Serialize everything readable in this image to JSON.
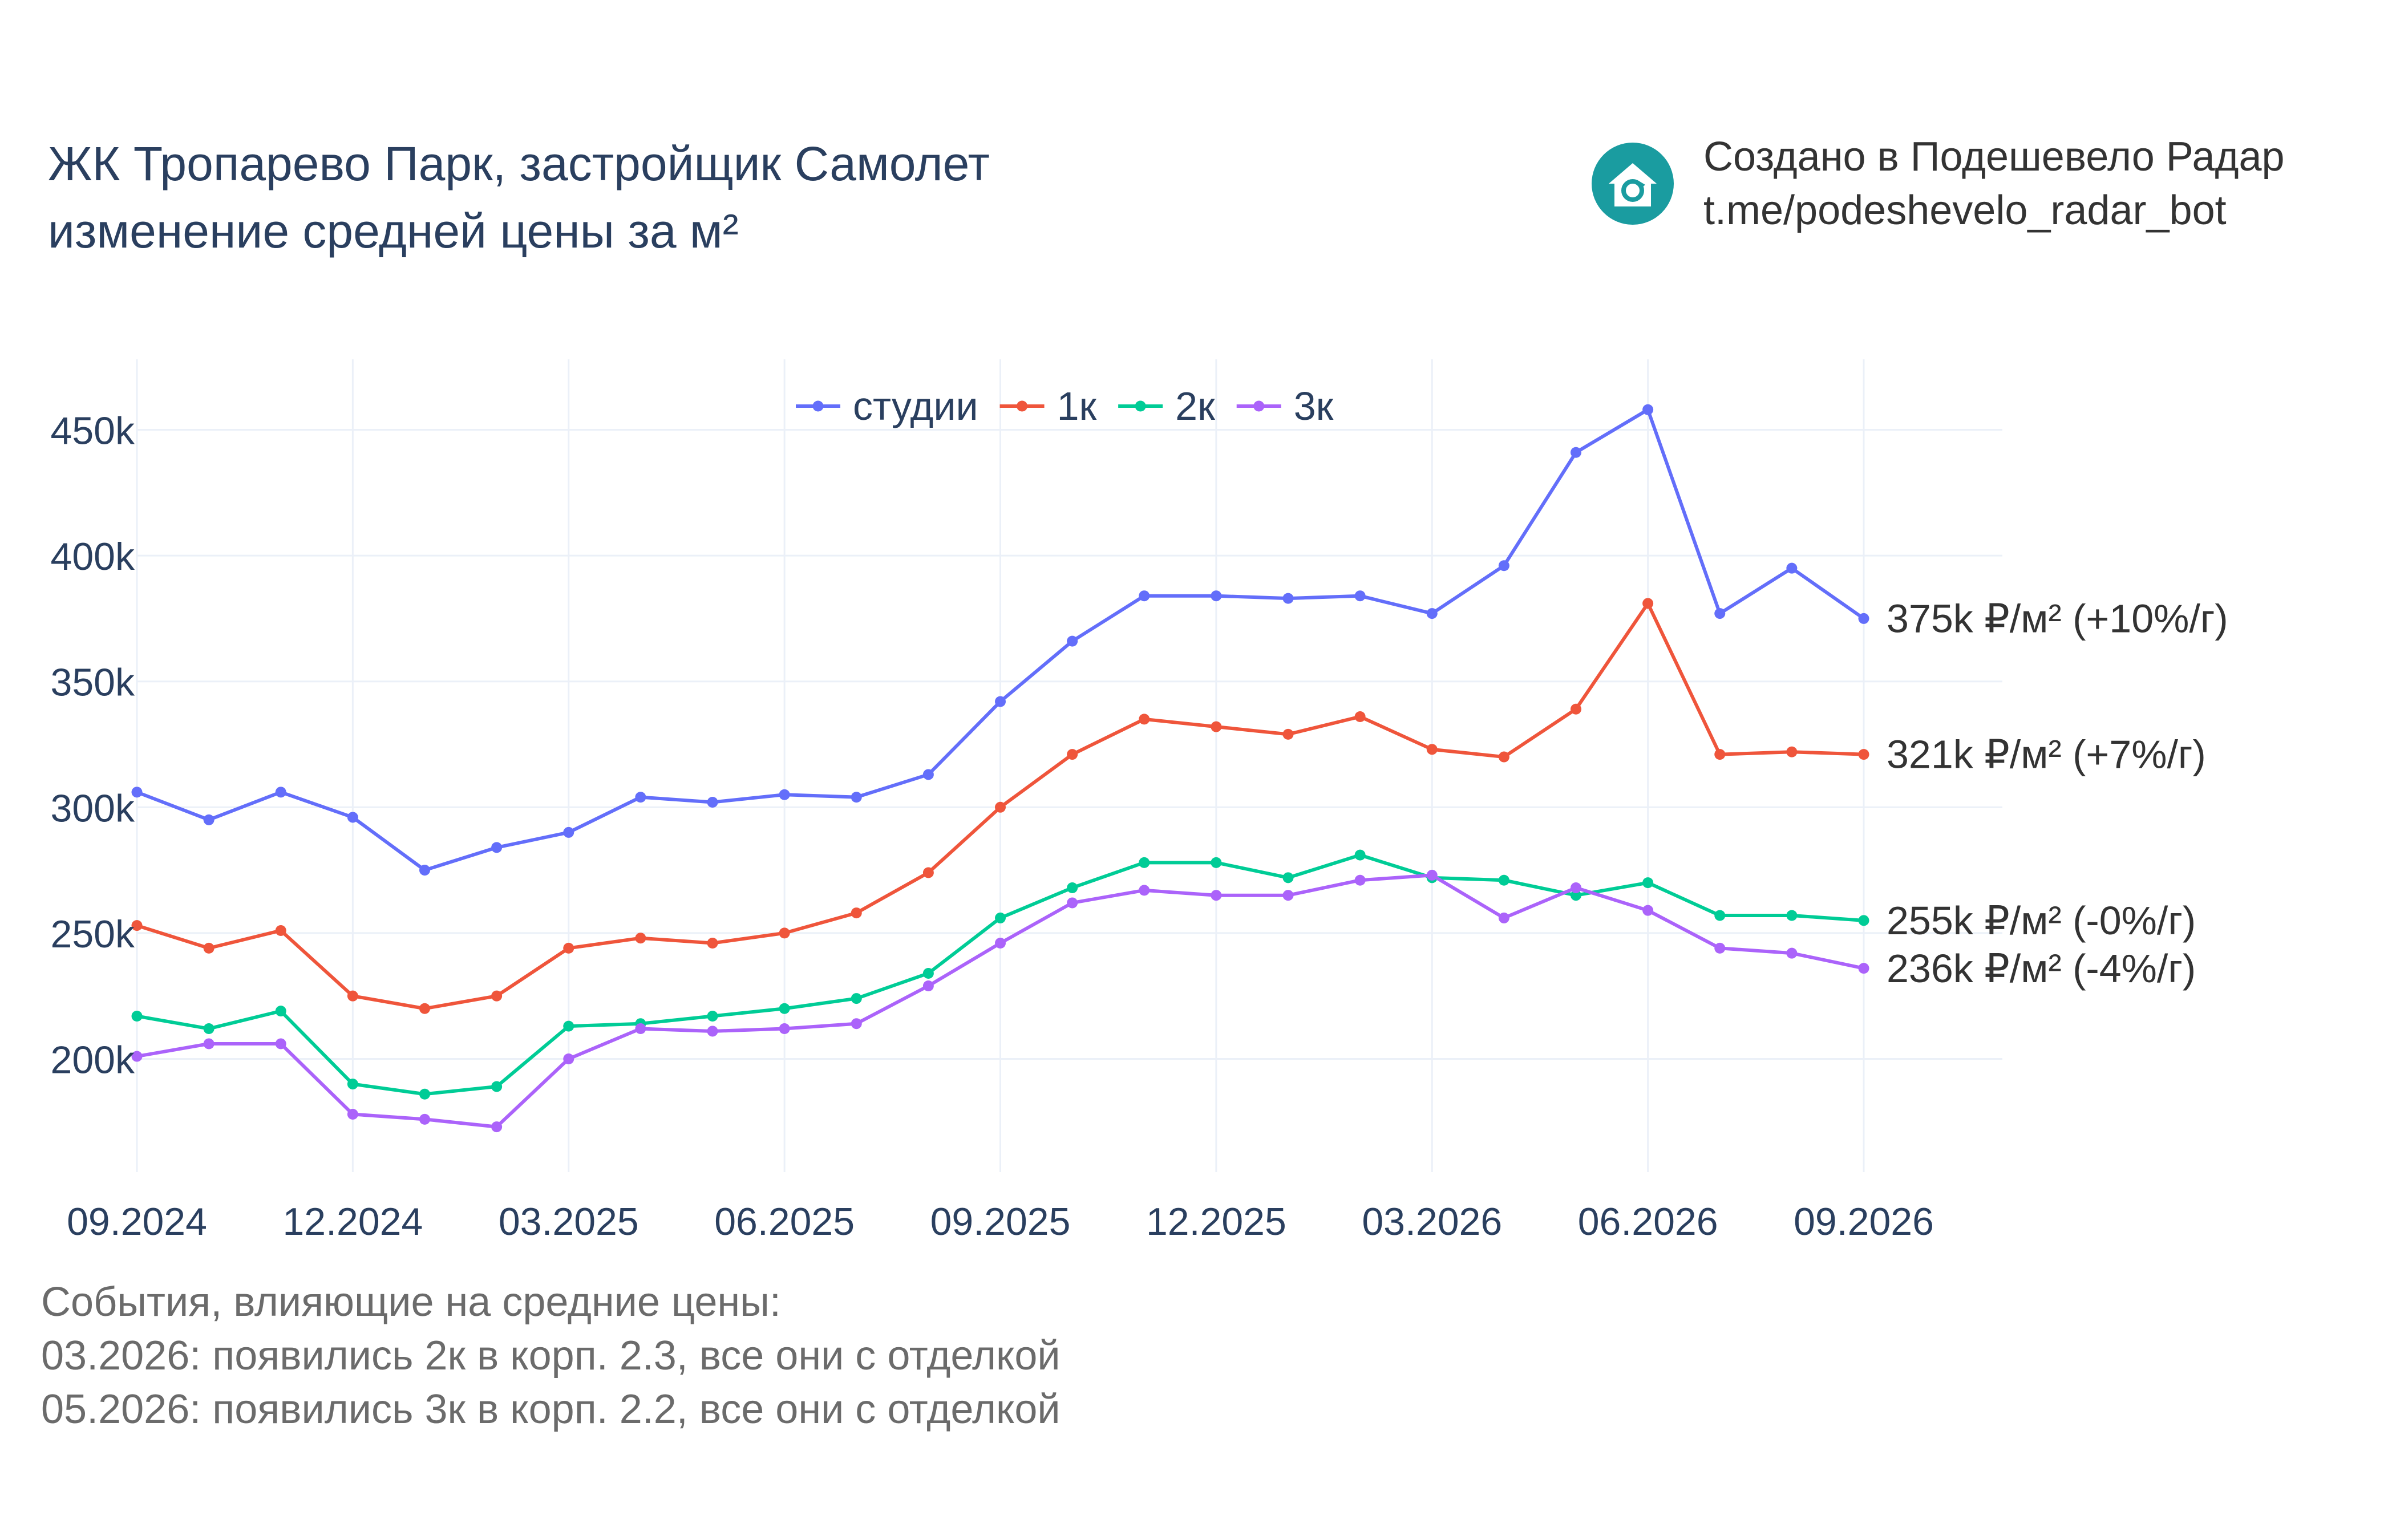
{
  "title": {
    "line1": "ЖК Тропарево Парк, застройщик Самолет",
    "line2": "изменение средней цены за м²"
  },
  "brand": {
    "line1": "Создано в Подешевело Радар",
    "line2": "t.me/podeshevelo_radar_bot",
    "logo_icon": "house-refresh-icon",
    "logo_color": "#1a9ca0"
  },
  "events": {
    "heading": "События, влияющие на средние цены:",
    "items": [
      "03.2026: появились 2к в корп. 2.3, все они с отделкой",
      "05.2026: появились 3к в корп. 2.2, все они с отделкой"
    ]
  },
  "chart_data": {
    "type": "line",
    "x": [
      "09.2024",
      "10.2024",
      "11.2024",
      "12.2024",
      "01.2025",
      "02.2025",
      "03.2025",
      "04.2025",
      "05.2025",
      "06.2025",
      "07.2025",
      "08.2025",
      "09.2025",
      "10.2025",
      "11.2025",
      "12.2025",
      "01.2026",
      "02.2026",
      "03.2026",
      "04.2026",
      "05.2026",
      "06.2026",
      "07.2026",
      "08.2026",
      "09.2026"
    ],
    "x_ticks": [
      "09.2024",
      "12.2024",
      "03.2025",
      "06.2025",
      "09.2025",
      "12.2025",
      "03.2026",
      "06.2026",
      "09.2026"
    ],
    "y_ticks": [
      200000,
      250000,
      300000,
      350000,
      400000,
      450000
    ],
    "y_tick_labels": [
      "200k",
      "250k",
      "300k",
      "350k",
      "400k",
      "450k"
    ],
    "ylim": [
      155000,
      478000
    ],
    "grid": true,
    "legend_position": "top-center",
    "series": [
      {
        "name": "студии",
        "color": "#636efa",
        "end_label": "375k ₽/м² (+10%/г)",
        "values": [
          306000,
          295000,
          306000,
          296000,
          275000,
          284000,
          290000,
          304000,
          302000,
          305000,
          304000,
          313000,
          342000,
          366000,
          384000,
          384000,
          383000,
          384000,
          377000,
          396000,
          441000,
          458000,
          377000,
          395000,
          375000
        ]
      },
      {
        "name": "1к",
        "color": "#ef553b",
        "end_label": "321k ₽/м² (+7%/г)",
        "values": [
          253000,
          244000,
          251000,
          225000,
          220000,
          225000,
          244000,
          248000,
          246000,
          250000,
          258000,
          274000,
          300000,
          321000,
          335000,
          332000,
          329000,
          336000,
          323000,
          320000,
          339000,
          381000,
          321000,
          322000,
          321000
        ]
      },
      {
        "name": "2к",
        "color": "#00cc96",
        "end_label": "255k ₽/м² (-0%/г)",
        "values": [
          217000,
          212000,
          219000,
          190000,
          186000,
          189000,
          213000,
          214000,
          217000,
          220000,
          224000,
          234000,
          256000,
          268000,
          278000,
          278000,
          272000,
          281000,
          272000,
          271000,
          265000,
          270000,
          257000,
          257000,
          255000
        ]
      },
      {
        "name": "3к",
        "color": "#ab63fa",
        "end_label": "236k ₽/м² (-4%/г)",
        "values": [
          201000,
          206000,
          206000,
          178000,
          176000,
          173000,
          200000,
          212000,
          211000,
          212000,
          214000,
          229000,
          246000,
          262000,
          267000,
          265000,
          265000,
          271000,
          273000,
          256000,
          268000,
          259000,
          244000,
          242000,
          236000
        ]
      }
    ]
  }
}
